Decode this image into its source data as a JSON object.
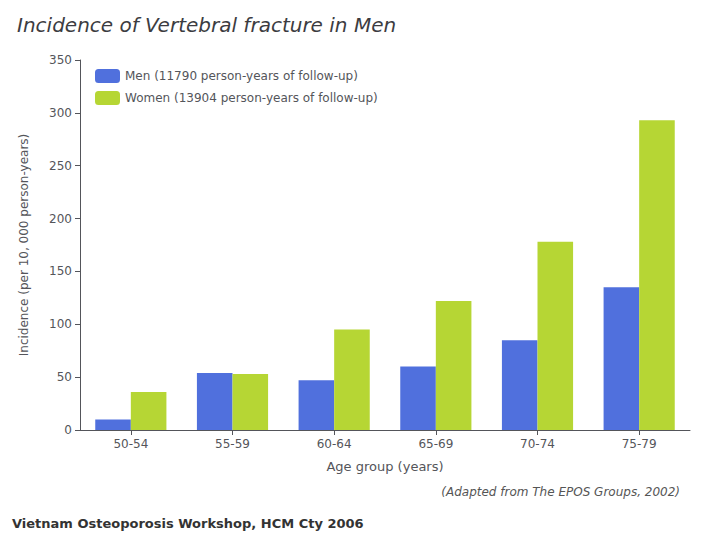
{
  "chart_data": {
    "type": "bar",
    "title": "Incidence of Vertebral fracture in Men",
    "x_label": "Age group (years)",
    "y_label": "Incidence (per 10, 000 person-years)",
    "categories": [
      "50-54",
      "55-59",
      "60-64",
      "65-69",
      "70-74",
      "75-79"
    ],
    "series": [
      {
        "name": "Men (11790 person-years of follow-up)",
        "values": [
          10,
          54,
          47,
          60,
          85,
          135
        ]
      },
      {
        "name": "Women (13904 person-years of follow-up)",
        "values": [
          36,
          53,
          95,
          122,
          178,
          293
        ]
      }
    ],
    "ylim": [
      0,
      350
    ],
    "yticks": [
      0,
      50,
      100,
      150,
      200,
      250,
      300,
      350
    ],
    "grid": false,
    "legend": "upper left",
    "annotations": [
      "(Adapted from The EPOS Groups, 2002)",
      "Vietnam Osteoporosis Workshop, HCM Cty 2006"
    ]
  }
}
